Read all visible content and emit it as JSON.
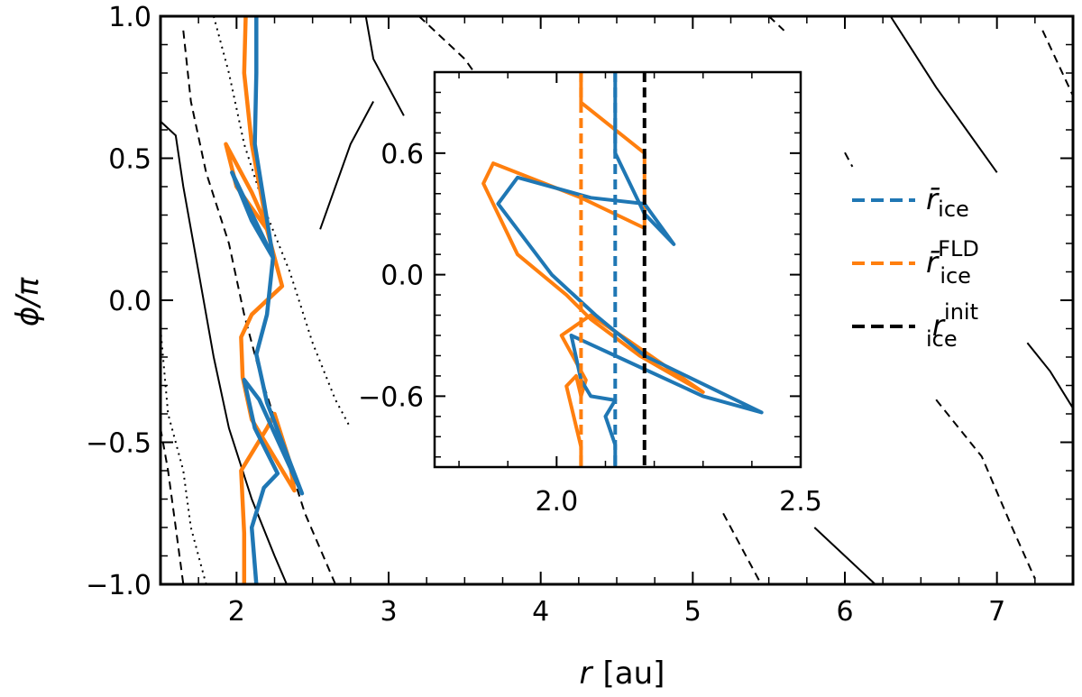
{
  "chart_data": [
    {
      "id": "main",
      "type": "line",
      "xlabel_symbol": "r",
      "xlabel_unit": "[au]",
      "ylabel": "ϕ/π",
      "xlim": [
        1.5,
        7.5
      ],
      "ylim": [
        -1.0,
        1.0
      ],
      "x_ticks": [
        2,
        3,
        4,
        5,
        6,
        7
      ],
      "x_tick_labels": [
        "2",
        "3",
        "4",
        "5",
        "6",
        "7"
      ],
      "y_ticks": [
        -1.0,
        -0.5,
        0.0,
        0.5,
        1.0
      ],
      "y_tick_labels": [
        "−1.0",
        "−0.5",
        "0.0",
        "0.5",
        "1.0"
      ],
      "series": [
        {
          "color": "#ff7f0e",
          "values": [
            [
              2.05,
              -1.0
            ],
            [
              2.05,
              -0.82
            ],
            [
              2.03,
              -0.6
            ],
            [
              2.2,
              -0.45
            ],
            [
              2.25,
              -0.4
            ],
            [
              2.35,
              -0.57
            ],
            [
              2.38,
              -0.67
            ],
            [
              2.1,
              -0.42
            ],
            [
              2.04,
              -0.27
            ],
            [
              2.03,
              -0.13
            ],
            [
              2.1,
              -0.05
            ],
            [
              2.3,
              0.05
            ],
            [
              2.2,
              0.25
            ],
            [
              2.0,
              0.4
            ],
            [
              1.93,
              0.55
            ],
            [
              2.1,
              0.38
            ],
            [
              2.2,
              0.26
            ],
            [
              2.1,
              0.55
            ],
            [
              2.05,
              0.8
            ],
            [
              2.06,
              1.0
            ]
          ]
        },
        {
          "color": "#1f77b4",
          "values": [
            [
              2.13,
              -1.0
            ],
            [
              2.1,
              -0.8
            ],
            [
              2.18,
              -0.66
            ],
            [
              2.27,
              -0.61
            ],
            [
              2.12,
              -0.45
            ],
            [
              2.05,
              -0.28
            ],
            [
              2.15,
              -0.35
            ],
            [
              2.43,
              -0.68
            ],
            [
              2.2,
              -0.36
            ],
            [
              2.13,
              -0.19
            ],
            [
              2.2,
              -0.05
            ],
            [
              2.24,
              0.15
            ],
            [
              2.1,
              0.28
            ],
            [
              1.97,
              0.45
            ],
            [
              2.05,
              0.36
            ],
            [
              2.24,
              0.15
            ],
            [
              2.12,
              0.55
            ],
            [
              2.13,
              0.8
            ],
            [
              2.13,
              1.0
            ]
          ]
        }
      ],
      "contours": [
        {
          "style": "solid",
          "values": [
            [
              1.5,
              0.63
            ],
            [
              1.6,
              0.58
            ],
            [
              1.65,
              0.4
            ],
            [
              1.75,
              0.1
            ],
            [
              1.85,
              -0.2
            ],
            [
              1.95,
              -0.45
            ],
            [
              2.1,
              -0.7
            ],
            [
              2.25,
              -0.9
            ],
            [
              2.33,
              -1.0
            ]
          ]
        },
        {
          "style": "dashed",
          "values": [
            [
              1.65,
              0.95
            ],
            [
              1.7,
              0.7
            ],
            [
              1.8,
              0.45
            ],
            [
              1.95,
              0.2
            ],
            [
              2.05,
              -0.05
            ],
            [
              2.15,
              -0.25
            ],
            [
              2.3,
              -0.5
            ],
            [
              2.45,
              -0.75
            ],
            [
              2.65,
              -1.0
            ]
          ]
        },
        {
          "style": "dotted",
          "values": [
            [
              1.85,
              1.0
            ],
            [
              1.95,
              0.8
            ],
            [
              2.05,
              0.55
            ],
            [
              2.2,
              0.3
            ],
            [
              2.35,
              0.1
            ],
            [
              2.5,
              -0.15
            ],
            [
              2.65,
              -0.35
            ],
            [
              2.75,
              -0.45
            ]
          ]
        },
        {
          "style": "dotted",
          "values": [
            [
              1.5,
              -0.1
            ],
            [
              1.55,
              -0.4
            ],
            [
              1.65,
              -0.6
            ],
            [
              1.7,
              -0.8
            ],
            [
              1.8,
              -1.0
            ]
          ]
        },
        {
          "style": "dashed",
          "values": [
            [
              1.5,
              -0.45
            ],
            [
              1.55,
              -0.6
            ],
            [
              1.6,
              -0.8
            ],
            [
              1.65,
              -1.0
            ]
          ]
        },
        {
          "style": "solid",
          "values": [
            [
              2.85,
              1.0
            ],
            [
              2.9,
              0.85
            ],
            [
              3.0,
              0.75
            ],
            [
              3.1,
              0.65
            ]
          ]
        },
        {
          "style": "solid",
          "values": [
            [
              2.55,
              0.25
            ],
            [
              2.75,
              0.55
            ],
            [
              2.9,
              0.7
            ]
          ]
        },
        {
          "style": "dashed",
          "values": [
            [
              3.2,
              1.0
            ],
            [
              3.5,
              0.85
            ],
            [
              3.7,
              0.7
            ]
          ]
        },
        {
          "style": "solid",
          "values": [
            [
              6.3,
              1.0
            ],
            [
              6.6,
              0.75
            ],
            [
              6.8,
              0.6
            ],
            [
              7.0,
              0.45
            ]
          ]
        },
        {
          "style": "dashed",
          "values": [
            [
              5.5,
              1.0
            ],
            [
              5.6,
              0.95
            ]
          ]
        },
        {
          "style": "dashed",
          "values": [
            [
              7.3,
              0.95
            ],
            [
              7.5,
              0.72
            ]
          ]
        },
        {
          "style": "dashed",
          "values": [
            [
              6.0,
              0.52
            ],
            [
              6.05,
              0.47
            ]
          ]
        },
        {
          "style": "solid",
          "values": [
            [
              7.2,
              -0.15
            ],
            [
              7.35,
              -0.25
            ],
            [
              7.5,
              -0.38
            ]
          ]
        },
        {
          "style": "dashed",
          "values": [
            [
              6.6,
              -0.35
            ],
            [
              6.9,
              -0.55
            ],
            [
              7.1,
              -0.8
            ],
            [
              7.25,
              -0.98
            ]
          ]
        },
        {
          "style": "dashed",
          "values": [
            [
              5.2,
              -0.75
            ],
            [
              5.3,
              -0.85
            ],
            [
              5.45,
              -1.0
            ]
          ]
        },
        {
          "style": "solid",
          "values": [
            [
              5.8,
              -0.8
            ],
            [
              6.0,
              -0.9
            ],
            [
              6.2,
              -1.0
            ]
          ]
        }
      ]
    },
    {
      "id": "inset",
      "type": "line",
      "xlim": [
        1.75,
        2.5
      ],
      "ylim": [
        -0.95,
        1.0
      ],
      "x_ticks": [
        2.0,
        2.5
      ],
      "x_tick_labels": [
        "2.0",
        "2.5"
      ],
      "y_ticks": [
        -0.6,
        0.0,
        0.6
      ],
      "y_tick_labels": [
        "−0.6",
        "0.0",
        "0.6"
      ],
      "series": [
        {
          "color": "#ff7f0e",
          "values": [
            [
              2.05,
              -0.95
            ],
            [
              2.05,
              -0.85
            ],
            [
              2.04,
              -0.75
            ],
            [
              2.02,
              -0.55
            ],
            [
              2.04,
              -0.5
            ],
            [
              2.05,
              -0.6
            ],
            [
              2.06,
              -0.52
            ],
            [
              2.01,
              -0.3
            ],
            [
              2.07,
              -0.2
            ],
            [
              2.15,
              -0.33
            ],
            [
              2.3,
              -0.58
            ],
            [
              2.17,
              -0.4
            ],
            [
              2.07,
              -0.22
            ],
            [
              2.02,
              -0.1
            ],
            [
              1.92,
              0.1
            ],
            [
              1.85,
              0.45
            ],
            [
              1.87,
              0.55
            ],
            [
              2.05,
              0.38
            ],
            [
              2.18,
              0.23
            ],
            [
              2.18,
              0.6
            ],
            [
              2.05,
              0.85
            ],
            [
              2.05,
              1.0
            ]
          ]
        },
        {
          "color": "#1f77b4",
          "values": [
            [
              2.12,
              -0.95
            ],
            [
              2.12,
              -0.84
            ],
            [
              2.1,
              -0.7
            ],
            [
              2.12,
              -0.62
            ],
            [
              2.07,
              -0.6
            ],
            [
              2.05,
              -0.52
            ],
            [
              2.03,
              -0.3
            ],
            [
              2.12,
              -0.4
            ],
            [
              2.3,
              -0.6
            ],
            [
              2.42,
              -0.68
            ],
            [
              2.18,
              -0.4
            ],
            [
              2.08,
              -0.2
            ],
            [
              1.99,
              0.0
            ],
            [
              1.88,
              0.35
            ],
            [
              1.92,
              0.48
            ],
            [
              2.07,
              0.38
            ],
            [
              2.18,
              0.35
            ],
            [
              2.24,
              0.15
            ],
            [
              2.18,
              0.3
            ],
            [
              2.12,
              0.6
            ],
            [
              2.12,
              0.85
            ],
            [
              2.12,
              1.0
            ]
          ]
        }
      ],
      "vlines": [
        {
          "color": "#ff7f0e",
          "x": 2.05
        },
        {
          "color": "#1f77b4",
          "x": 2.12
        },
        {
          "color": "#000000",
          "x": 2.18
        }
      ]
    }
  ],
  "legend": {
    "placement": "right",
    "items": [
      {
        "color": "#1f77b4",
        "symbol": "r̄",
        "sub": "ice",
        "sup": ""
      },
      {
        "color": "#ff7f0e",
        "symbol": "r̄",
        "sub": "ice",
        "sup": "FLD"
      },
      {
        "color": "#000000",
        "symbol": "r",
        "sub": "ice",
        "sup": "init"
      }
    ]
  }
}
